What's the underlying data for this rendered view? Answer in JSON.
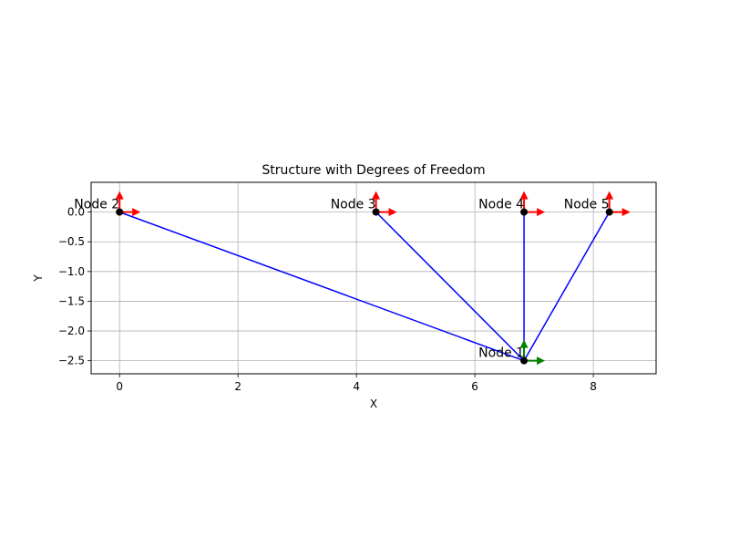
{
  "chart_data": {
    "type": "scatter",
    "title": "Structure with Degrees of Freedom",
    "xlabel": "X",
    "ylabel": "Y",
    "xlim": [
      -0.48,
      9.06
    ],
    "ylim": [
      -2.72,
      0.5
    ],
    "xticks": [
      0,
      2,
      4,
      6,
      8
    ],
    "xtick_labels": [
      "0",
      "2",
      "4",
      "6",
      "8"
    ],
    "yticks": [
      0.0,
      -0.5,
      -1.0,
      -1.5,
      -2.0,
      -2.5
    ],
    "ytick_labels": [
      "0.0",
      "−0.5",
      "−1.0",
      "−1.5",
      "−2.0",
      "−2.5"
    ],
    "grid": true,
    "nodes": [
      {
        "label": "Node 1",
        "x": 6.83,
        "y": -2.5,
        "dof_color": "#008000"
      },
      {
        "label": "Node 2",
        "x": 0.0,
        "y": 0.0,
        "dof_color": "#ff0000"
      },
      {
        "label": "Node 3",
        "x": 4.33,
        "y": 0.0,
        "dof_color": "#ff0000"
      },
      {
        "label": "Node 4",
        "x": 6.83,
        "y": 0.0,
        "dof_color": "#ff0000"
      },
      {
        "label": "Node 5",
        "x": 8.27,
        "y": 0.0,
        "dof_color": "#ff0000"
      }
    ],
    "members": [
      {
        "from": 1,
        "to": 0
      },
      {
        "from": 2,
        "to": 0
      },
      {
        "from": 3,
        "to": 0
      },
      {
        "from": 4,
        "to": 0
      }
    ],
    "colors": {
      "member": "#0000ff",
      "node": "#000000",
      "free_dof": "#008000",
      "fixed_dof": "#ff0000",
      "grid": "#b0b0b0"
    }
  }
}
